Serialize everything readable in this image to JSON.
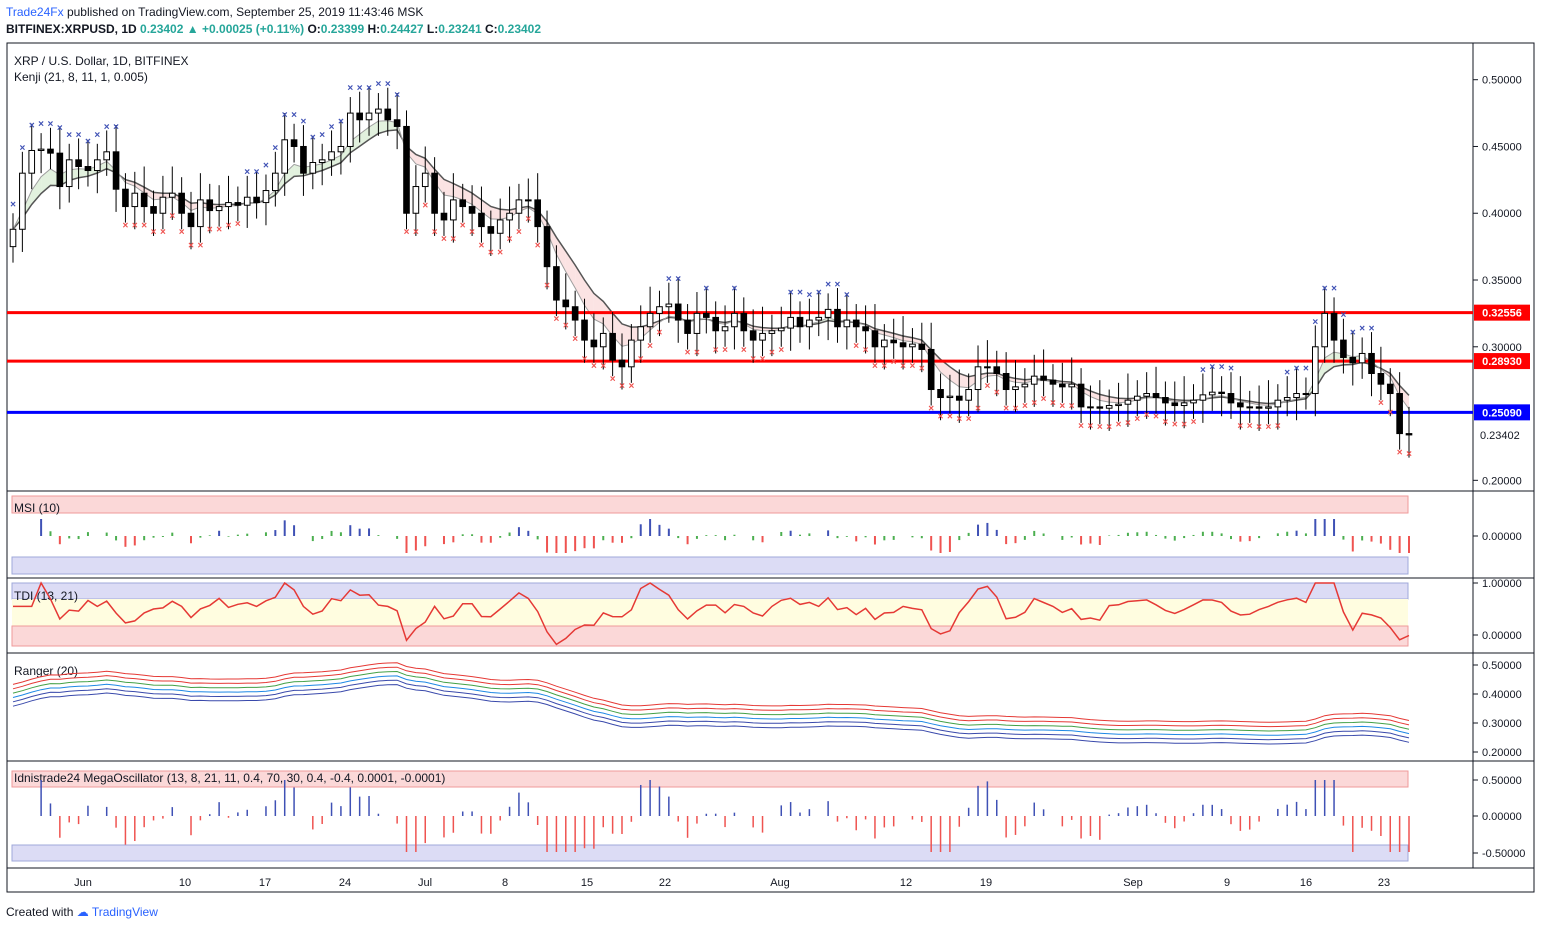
{
  "header": {
    "brand": "Trade24Fx",
    "published": "published on TradingView.com, September 25, 2019 11:43:46 MSK",
    "symbol": "BITFINEX:XRPUSD, 1D",
    "price": "0.23402",
    "change": "+0.00025 (+0.11%)",
    "o": "0.23399",
    "h": "0.24427",
    "l": "0.23241",
    "c": "0.23402"
  },
  "colors": {
    "up": "#ffffff",
    "down": "#000000",
    "support": "#0000ff",
    "resistance": "#ff0000",
    "sell": "#ef5350",
    "buy": "#3f51b5",
    "band": "#555555"
  },
  "footer": {
    "created_with": "Created with",
    "brand": "TradingView"
  },
  "chart_data": [
    {
      "type": "candlestick",
      "title": "XRP / U.S. Dollar, 1D, BITFINEX",
      "subtitle": "Kenji (21, 8, 11, 1, 0.005)",
      "x_ticks": [
        "Jun",
        "10",
        "17",
        "24",
        "Jul",
        "8",
        "15",
        "22",
        "Aug",
        "12",
        "19",
        "Sep",
        "9",
        "16",
        "23"
      ],
      "y_ticks": [
        "0.50000",
        "0.45000",
        "0.40000",
        "0.35000",
        "0.30000",
        "0.20000"
      ],
      "ylim": [
        0.195,
        0.52
      ],
      "levels": [
        {
          "value": 0.32556,
          "label": "0.32556",
          "color": "#ff0000"
        },
        {
          "value": 0.2893,
          "label": "0.28930",
          "color": "#ff0000"
        },
        {
          "value": 0.2509,
          "label": "0.25090",
          "color": "#0000ff"
        }
      ],
      "last_price": {
        "value": 0.23402,
        "label": "0.23402"
      },
      "close": [
        0.388,
        0.43,
        0.447,
        0.448,
        0.445,
        0.42,
        0.44,
        0.435,
        0.432,
        0.44,
        0.446,
        0.418,
        0.405,
        0.415,
        0.405,
        0.4,
        0.412,
        0.415,
        0.4,
        0.39,
        0.41,
        0.402,
        0.405,
        0.408,
        0.406,
        0.412,
        0.408,
        0.417,
        0.43,
        0.455,
        0.45,
        0.43,
        0.438,
        0.44,
        0.446,
        0.45,
        0.475,
        0.47,
        0.475,
        0.478,
        0.47,
        0.465,
        0.4,
        0.42,
        0.43,
        0.4,
        0.395,
        0.41,
        0.405,
        0.4,
        0.39,
        0.385,
        0.395,
        0.4,
        0.41,
        0.41,
        0.39,
        0.36,
        0.335,
        0.33,
        0.32,
        0.305,
        0.3,
        0.31,
        0.29,
        0.285,
        0.305,
        0.315,
        0.325,
        0.33,
        0.332,
        0.32,
        0.31,
        0.325,
        0.322,
        0.312,
        0.315,
        0.325,
        0.312,
        0.305,
        0.31,
        0.312,
        0.314,
        0.322,
        0.315,
        0.32,
        0.322,
        0.328,
        0.315,
        0.32,
        0.315,
        0.312,
        0.3,
        0.305,
        0.303,
        0.3,
        0.302,
        0.298,
        0.268,
        0.262,
        0.263,
        0.26,
        0.268,
        0.285,
        0.285,
        0.28,
        0.268,
        0.27,
        0.272,
        0.278,
        0.275,
        0.272,
        0.27,
        0.272,
        0.255,
        0.255,
        0.254,
        0.256,
        0.257,
        0.26,
        0.263,
        0.265,
        0.262,
        0.258,
        0.256,
        0.258,
        0.26,
        0.264,
        0.266,
        0.265,
        0.258,
        0.255,
        0.255,
        0.254,
        0.255,
        0.26,
        0.262,
        0.265,
        0.265,
        0.3,
        0.325,
        0.305,
        0.292,
        0.288,
        0.295,
        0.28,
        0.272,
        0.265,
        0.235,
        0.234
      ]
    },
    {
      "type": "bar",
      "title": "MSI (10)",
      "y_ticks": [
        "0.00000"
      ],
      "ylim": [
        -1,
        1
      ]
    },
    {
      "type": "line",
      "title": "TDI (13, 21)",
      "y_ticks": [
        "1.00000",
        "0.00000"
      ],
      "ylim": [
        -0.25,
        1.1
      ]
    },
    {
      "type": "line",
      "title": "Ranger (20)",
      "y_ticks": [
        "0.50000",
        "0.40000",
        "0.30000",
        "0.20000"
      ],
      "ylim": [
        0.18,
        0.53
      ]
    },
    {
      "type": "bar",
      "title": "Idnistrade24 MegaOscillator (13, 8, 21, 11, 0.4, 70, 30, 0.4, -0.4, 0.0001, -0.0001)",
      "y_ticks": [
        "0.50000",
        "0.00000",
        "-0.50000"
      ],
      "ylim": [
        -0.65,
        0.7
      ]
    }
  ]
}
